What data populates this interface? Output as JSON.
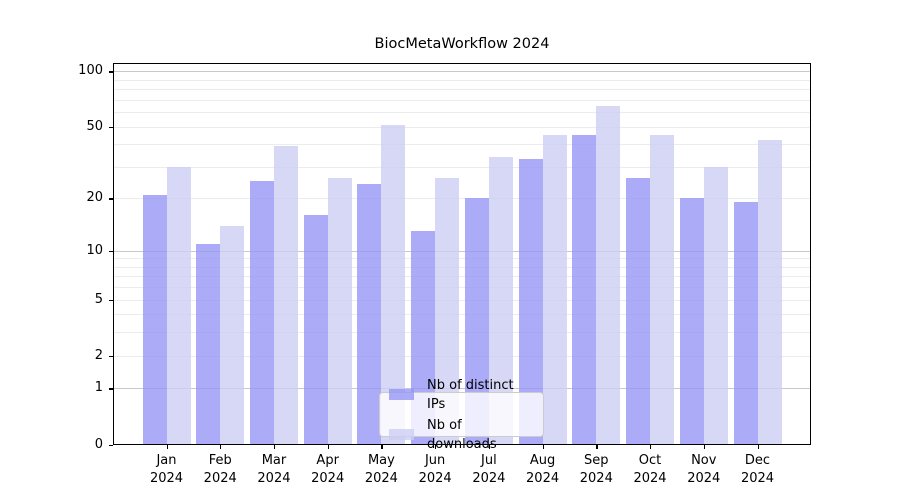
{
  "chart_data": {
    "type": "bar",
    "title": "BiocMetaWorkflow 2024",
    "categories": [
      "Jan",
      "Feb",
      "Mar",
      "Apr",
      "May",
      "Jun",
      "Jul",
      "Aug",
      "Sep",
      "Oct",
      "Nov",
      "Dec"
    ],
    "year_label": "2024",
    "series": [
      {
        "key": "distinct-ips",
        "name": "Nb of distinct IPs",
        "color": "#9696f5",
        "values": [
          21,
          11,
          25,
          16,
          24,
          13,
          20,
          33,
          45,
          26,
          20,
          19
        ]
      },
      {
        "key": "downloads",
        "name": "Nb of downloads",
        "color": "#cdcdf4",
        "values": [
          30,
          14,
          39,
          26,
          51,
          26,
          34,
          45,
          65,
          45,
          30,
          42
        ]
      }
    ],
    "yscale": "log1p",
    "ylim": [
      0,
      110
    ],
    "yticks": [
      100,
      50,
      20,
      10,
      5,
      2,
      1,
      0
    ],
    "grid": {
      "major_values": [
        1,
        10,
        100
      ],
      "minor_values": [
        2,
        3,
        4,
        5,
        6,
        7,
        8,
        9,
        20,
        30,
        40,
        50,
        60,
        70,
        80,
        90
      ],
      "major_color": "#c9c9c9",
      "minor_color": "#ececec"
    },
    "legend_position": "lower center",
    "bar_opacity": 0.8,
    "axis_color": "#000000",
    "legend_border_color": "#cccccc"
  }
}
